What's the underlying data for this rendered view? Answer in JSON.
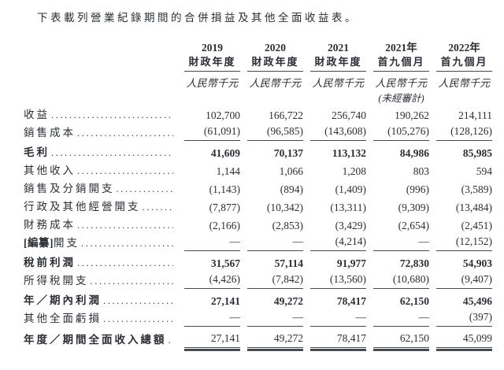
{
  "intro": "下表載列營業紀錄期間的合併損益及其他全面收益表。",
  "colors": {
    "text": "#2b2e35",
    "rule": "#454a52",
    "background": "#ffffff"
  },
  "table": {
    "columns": [
      {
        "year": "2019",
        "period": "財政年度",
        "unit": "人民幣千元",
        "note": ""
      },
      {
        "year": "2020",
        "period": "財政年度",
        "unit": "人民幣千元",
        "note": ""
      },
      {
        "year": "2021",
        "period": "財政年度",
        "unit": "人民幣千元",
        "note": ""
      },
      {
        "year": "2021年",
        "period": "首九個月",
        "unit": "人民幣千元",
        "note": "(未經審計)"
      },
      {
        "year": "2022年",
        "period": "首九個月",
        "unit": "人民幣千元",
        "note": ""
      }
    ],
    "rows": [
      {
        "label": "收益",
        "label_prefix": "",
        "label_bold": false,
        "values_bold": false,
        "underline": "none",
        "gap_before": false,
        "values": [
          "102,700",
          "166,722",
          "256,740",
          "190,262",
          "214,111"
        ]
      },
      {
        "label": "銷售成本",
        "label_prefix": "",
        "label_bold": false,
        "values_bold": false,
        "underline": "single",
        "gap_before": false,
        "values": [
          "(61,091)",
          "(96,585)",
          "(143,608)",
          "(105,276)",
          "(128,126)"
        ]
      },
      {
        "label": "毛利",
        "label_prefix": "",
        "label_bold": true,
        "values_bold": true,
        "underline": "none",
        "gap_before": true,
        "values": [
          "41,609",
          "70,137",
          "113,132",
          "84,986",
          "85,985"
        ]
      },
      {
        "label": "其他收入",
        "label_prefix": "",
        "label_bold": false,
        "values_bold": false,
        "underline": "none",
        "gap_before": false,
        "values": [
          "1,144",
          "1,066",
          "1,208",
          "803",
          "594"
        ]
      },
      {
        "label": "銷售及分銷開支",
        "label_prefix": "",
        "label_bold": false,
        "values_bold": false,
        "underline": "none",
        "gap_before": false,
        "values": [
          "(1,143)",
          "(894)",
          "(1,409)",
          "(996)",
          "(3,589)"
        ]
      },
      {
        "label": "行政及其他經營開支",
        "label_prefix": "",
        "label_bold": false,
        "values_bold": false,
        "underline": "none",
        "gap_before": false,
        "values": [
          "(7,877)",
          "(10,342)",
          "(13,311)",
          "(9,309)",
          "(13,484)"
        ]
      },
      {
        "label": "財務成本",
        "label_prefix": "",
        "label_bold": false,
        "values_bold": false,
        "underline": "none",
        "gap_before": false,
        "values": [
          "(2,166)",
          "(2,853)",
          "(3,429)",
          "(2,654)",
          "(2,451)"
        ]
      },
      {
        "label": "開支",
        "label_prefix": "[編纂]",
        "label_bold": false,
        "values_bold": false,
        "underline": "single",
        "gap_before": false,
        "values": [
          "—",
          "—",
          "(4,214)",
          "—",
          "(12,152)"
        ]
      },
      {
        "label": "稅前利潤",
        "label_prefix": "",
        "label_bold": true,
        "values_bold": true,
        "underline": "none",
        "gap_before": true,
        "values": [
          "31,567",
          "57,114",
          "91,977",
          "72,830",
          "54,903"
        ]
      },
      {
        "label": "所得稅開支",
        "label_prefix": "",
        "label_bold": false,
        "values_bold": false,
        "underline": "single",
        "gap_before": false,
        "values": [
          "(4,426)",
          "(7,842)",
          "(13,560)",
          "(10,680)",
          "(9,407)"
        ]
      },
      {
        "label": "年／期內利潤",
        "label_prefix": "",
        "label_bold": true,
        "values_bold": true,
        "underline": "none",
        "gap_before": true,
        "values": [
          "27,141",
          "49,272",
          "78,417",
          "62,150",
          "45,496"
        ]
      },
      {
        "label": "其他全面虧損",
        "label_prefix": "",
        "label_bold": false,
        "values_bold": false,
        "underline": "single",
        "gap_before": false,
        "values": [
          "—",
          "—",
          "—",
          "—",
          "(397)"
        ]
      },
      {
        "label": "年度／期間全面收入總額",
        "label_prefix": "",
        "label_bold": true,
        "values_bold": false,
        "underline": "double",
        "gap_before": true,
        "values": [
          "27,141",
          "49,272",
          "78,417",
          "62,150",
          "45,099"
        ]
      }
    ]
  }
}
